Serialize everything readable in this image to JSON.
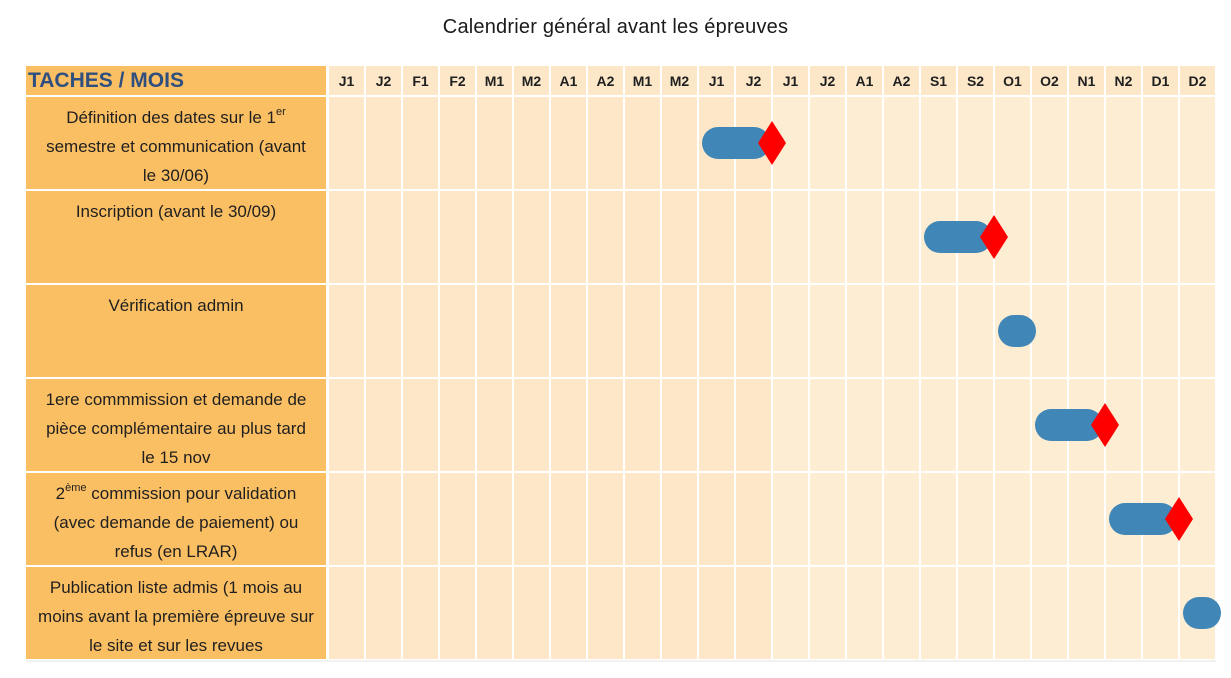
{
  "title": "Calendrier général avant les épreuves",
  "chart_data": {
    "type": "gantt",
    "title": "Calendrier général avant les épreuves",
    "header_label": "TACHES / MOIS",
    "periods": [
      "J1",
      "J2",
      "F1",
      "F2",
      "M1",
      "M2",
      "A1",
      "A2",
      "M1",
      "M2",
      "J1",
      "J2",
      "J1",
      "J2",
      "A1",
      "A2",
      "S1",
      "S2",
      "O1",
      "O2",
      "N1",
      "N2",
      "D1",
      "D2"
    ],
    "tasks": [
      {
        "parts": [
          "Définition des dates sur le 1",
          "er",
          " semestre et communication (avant le 30/06)"
        ],
        "start_period": 11,
        "end_period": 12,
        "milestone": true
      },
      {
        "parts": [
          "Inscription (avant le 30/09)"
        ],
        "start_period": 17,
        "end_period": 18,
        "milestone": true
      },
      {
        "parts": [
          "Vérification admin"
        ],
        "start_period": 19,
        "end_period": 19,
        "milestone": false
      },
      {
        "parts": [
          "1ere commmission et demande de pièce complémentaire au plus tard le 15 nov"
        ],
        "start_period": 20,
        "end_period": 21,
        "milestone": true
      },
      {
        "parts": [
          "2",
          "ème",
          " commission pour validation (avec demande de paiement) ou refus (en LRAR)"
        ],
        "start_period": 22,
        "end_period": 23,
        "milestone": true
      },
      {
        "parts": [
          "Publication liste admis (1 mois au moins avant la première épreuve sur le site et sur les revues"
        ],
        "start_period": 24,
        "end_period": 24,
        "milestone": false
      }
    ],
    "colors": {
      "task_cell": "#fbbf63",
      "header_label_text": "#2f4f7f",
      "grid_first_half": "#fde7c8",
      "grid_second_half": "#fdedd2",
      "month_header": "#fce8c9",
      "bar": "#4086b6",
      "milestone": "#ff0000"
    }
  }
}
